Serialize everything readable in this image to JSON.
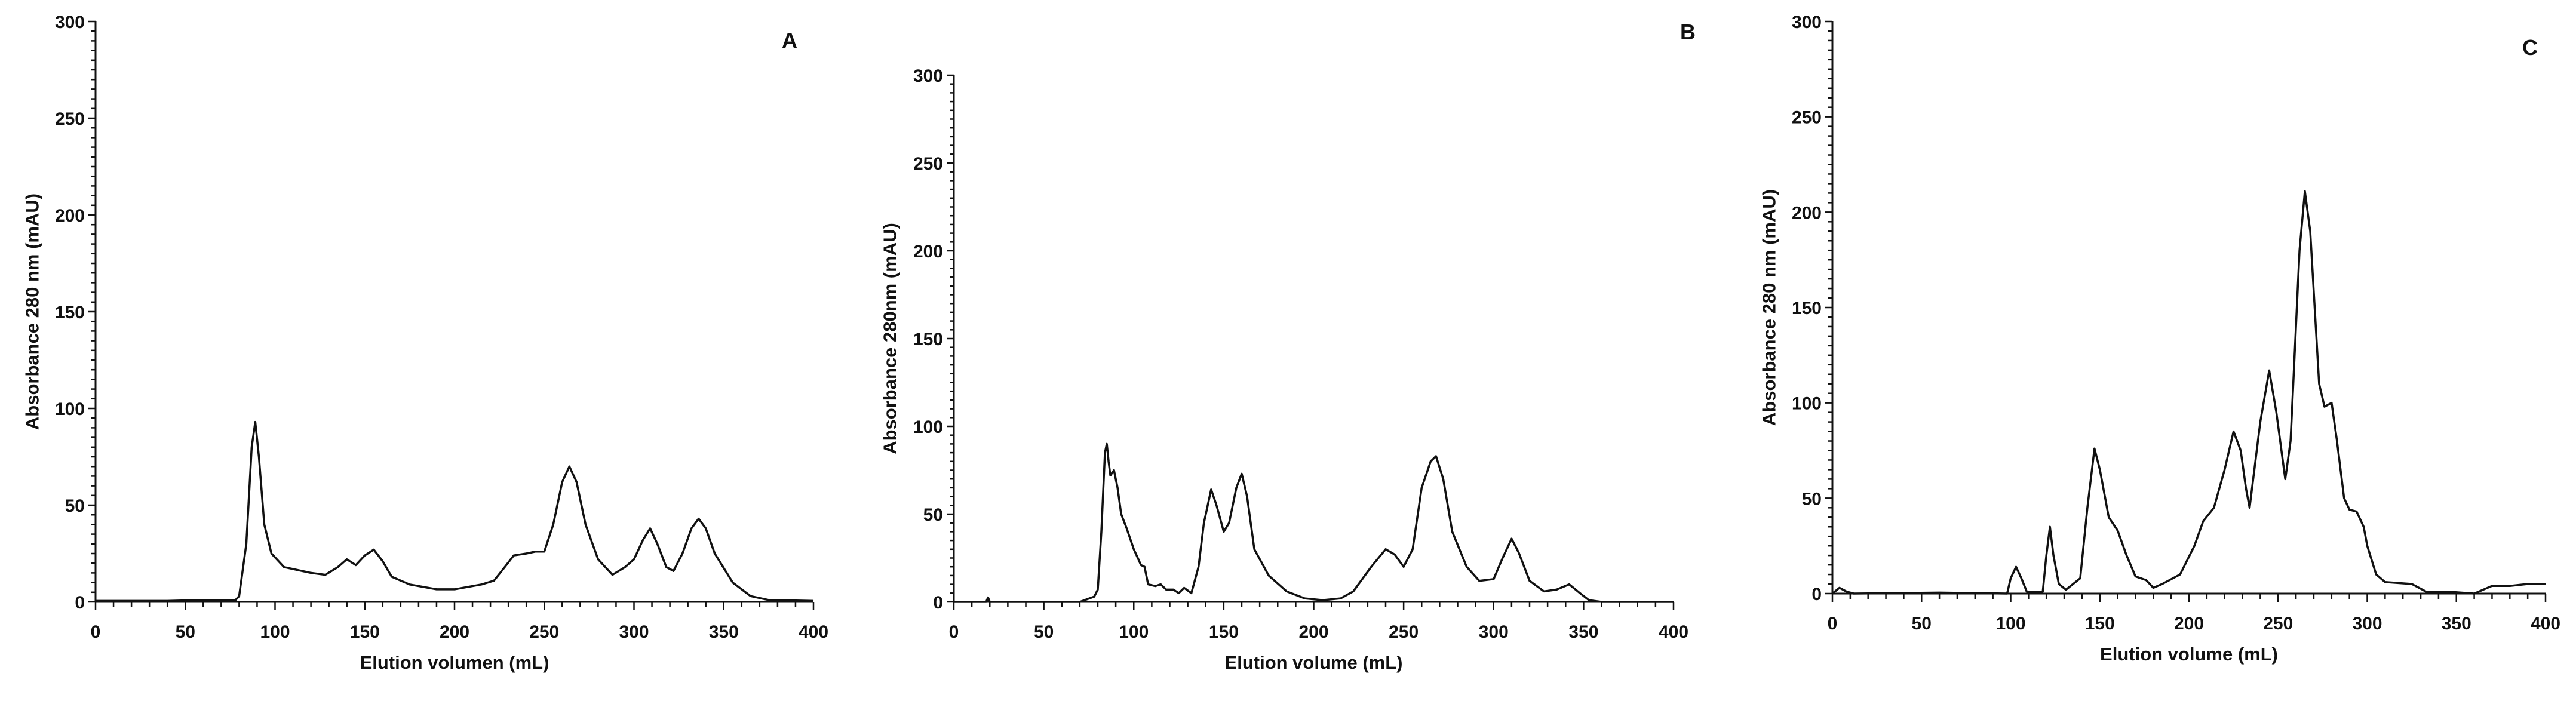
{
  "chart_data": [
    {
      "type": "line",
      "panel_label": "A",
      "xlabel": "Elution volumen (mL)",
      "ylabel": "Absorbance 280 nm (mAU)",
      "xlim": [
        0,
        400
      ],
      "ylim": [
        0,
        300
      ],
      "xticks": [
        0,
        50,
        100,
        150,
        200,
        250,
        300,
        350,
        400
      ],
      "yticks": [
        0,
        50,
        100,
        150,
        200,
        250,
        300
      ],
      "grid": false,
      "line_color": "#111111",
      "x": [
        0,
        40,
        60,
        78,
        80,
        84,
        87,
        89,
        91,
        94,
        98,
        105,
        120,
        128,
        135,
        140,
        145,
        150,
        155,
        160,
        165,
        175,
        190,
        200,
        215,
        222,
        228,
        233,
        240,
        245,
        250,
        255,
        260,
        264,
        268,
        273,
        280,
        288,
        295,
        300,
        305,
        309,
        313,
        318,
        322,
        327,
        332,
        336,
        340,
        345,
        355,
        365,
        375,
        400
      ],
      "y": [
        0.5,
        0.5,
        1,
        1,
        3,
        30,
        80,
        93,
        75,
        40,
        25,
        18,
        15,
        14,
        18,
        22,
        19,
        24,
        27,
        21,
        13,
        9,
        6.5,
        6.5,
        9,
        11,
        18,
        24,
        25,
        26,
        26,
        40,
        62,
        70,
        62,
        40,
        22,
        14,
        18,
        22,
        32,
        38,
        30,
        18,
        16,
        25,
        38,
        43,
        38,
        25,
        10,
        3,
        1,
        0.5
      ]
    },
    {
      "type": "line",
      "panel_label": "B",
      "xlabel": "Elution volume (mL)",
      "ylabel": "Absorbance 280nm (mAU)",
      "xlim": [
        0,
        400
      ],
      "ylim": [
        0,
        300
      ],
      "xticks": [
        0,
        50,
        100,
        150,
        200,
        250,
        300,
        350,
        400
      ],
      "yticks": [
        0,
        50,
        100,
        150,
        200,
        250,
        300
      ],
      "grid": false,
      "line_color": "#111111",
      "x": [
        0,
        18,
        19,
        20,
        70,
        78,
        80,
        82,
        84,
        85,
        86,
        87,
        89,
        91,
        93,
        96,
        100,
        104,
        106,
        108,
        112,
        115,
        118,
        122,
        125,
        128,
        132,
        136,
        139,
        143,
        146,
        150,
        153,
        157,
        160,
        163,
        167,
        175,
        185,
        195,
        205,
        215,
        222,
        232,
        240,
        245,
        250,
        255,
        260,
        265,
        268,
        272,
        277,
        285,
        292,
        300,
        305,
        310,
        314,
        320,
        328,
        335,
        342,
        348,
        353,
        360,
        400
      ],
      "y": [
        0,
        0,
        2.5,
        0,
        0,
        3,
        7,
        40,
        85,
        90,
        80,
        72,
        75,
        65,
        50,
        42,
        30,
        21,
        20,
        10,
        9,
        10,
        7,
        7,
        5,
        8,
        5,
        20,
        45,
        64,
        55,
        40,
        45,
        65,
        73,
        60,
        30,
        15,
        6,
        2,
        1,
        2,
        6,
        20,
        30,
        27,
        20,
        30,
        65,
        80,
        83,
        70,
        40,
        20,
        12,
        13,
        25,
        36,
        28,
        12,
        6,
        7,
        10,
        5,
        1,
        0,
        0
      ]
    },
    {
      "type": "line",
      "panel_label": "C",
      "xlabel": "Elution volume (mL)",
      "ylabel": "Absorbance 280 nm (mAU)",
      "xlim": [
        0,
        400
      ],
      "ylim": [
        0,
        300
      ],
      "xticks": [
        0,
        50,
        100,
        150,
        200,
        250,
        300,
        350,
        400
      ],
      "yticks": [
        0,
        50,
        100,
        150,
        200,
        250,
        300
      ],
      "grid": false,
      "line_color": "#111111",
      "x": [
        0,
        4,
        8,
        12,
        60,
        98,
        100,
        103,
        106,
        109,
        118,
        120,
        122,
        124,
        127,
        131,
        135,
        139,
        143,
        147,
        150,
        155,
        160,
        165,
        170,
        176,
        180,
        185,
        195,
        203,
        208,
        214,
        220,
        225,
        229,
        232,
        234,
        236,
        240,
        245,
        249,
        254,
        257,
        262,
        265,
        268,
        273,
        276,
        280,
        283,
        287,
        290,
        294,
        298,
        300,
        305,
        310,
        325,
        333,
        345,
        360,
        370,
        380,
        390,
        400
      ],
      "y": [
        0,
        3,
        1,
        0,
        0.5,
        0,
        8,
        14,
        8,
        1,
        1,
        20,
        35,
        20,
        5,
        2,
        5,
        8,
        45,
        76,
        65,
        40,
        33,
        20,
        9,
        7,
        3,
        5,
        10,
        25,
        38,
        45,
        65,
        85,
        75,
        55,
        45,
        60,
        90,
        117,
        95,
        60,
        80,
        180,
        211,
        190,
        110,
        98,
        100,
        80,
        50,
        44,
        43,
        35,
        25,
        10,
        6,
        5,
        1,
        1,
        0,
        4,
        4,
        5,
        5
      ]
    }
  ]
}
